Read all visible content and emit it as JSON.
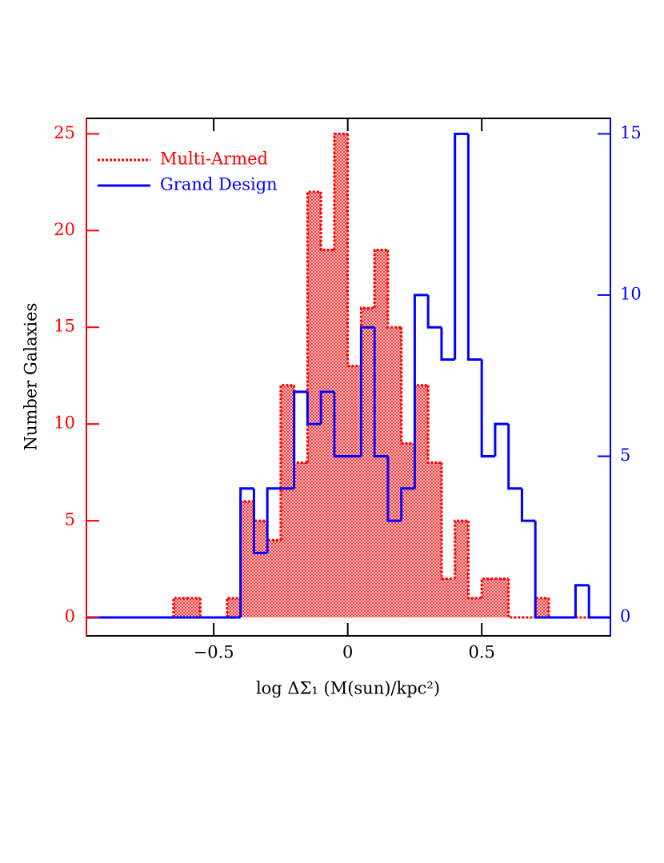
{
  "chart_data": {
    "type": "histogram",
    "xlabel": "log ΔΣ₁ (M(sun)/kpc²)",
    "ylabel": "Number Galaxies",
    "bins": [
      -1,
      -0.95,
      -0.9,
      -0.85,
      -0.8,
      -0.75,
      -0.7,
      -0.65,
      -0.6,
      -0.55,
      -0.5,
      -0.45,
      -0.4,
      -0.35,
      -0.3,
      -0.25,
      -0.2,
      -0.15,
      -0.1,
      -0.05,
      0,
      0.05,
      0.1,
      0.15,
      0.2,
      0.25,
      0.3,
      0.35,
      0.4,
      0.45,
      0.5,
      0.55,
      0.6,
      0.65,
      0.7,
      0.75,
      0.8,
      0.85,
      0.9,
      0.95,
      1
    ],
    "series": [
      {
        "name": "Multi-Armed",
        "color": "#ff0000",
        "values": [
          0,
          0,
          0,
          0,
          0,
          0,
          0,
          1,
          1,
          0,
          0,
          1,
          6,
          5,
          4,
          12,
          8,
          22,
          19,
          25,
          13,
          16,
          19,
          15,
          9,
          12,
          8,
          2,
          5,
          1,
          2,
          2,
          0,
          0,
          1,
          0,
          0,
          0,
          0,
          0
        ]
      },
      {
        "name": "Grand Design",
        "color": "#0000ff",
        "axis": "y2",
        "values": [
          0,
          0,
          0,
          0,
          0,
          0,
          0,
          0,
          0,
          0,
          0,
          0,
          4,
          2,
          4,
          4,
          7,
          6,
          7,
          5,
          5,
          9,
          5,
          3,
          4,
          10,
          9,
          8,
          15,
          8,
          5,
          6,
          4,
          3,
          0,
          0,
          0,
          1,
          0,
          0
        ]
      }
    ],
    "xlim": [
      -0.975,
      0.98
    ],
    "ylim": [
      -0.95,
      25.8
    ],
    "y2lim": [
      -0.57,
      15.48
    ],
    "xticks": [
      {
        "value": -0.5,
        "label": "−0.5"
      },
      0,
      0.5
    ],
    "yticks": [
      0,
      5,
      10,
      15,
      20,
      25
    ],
    "y2ticks": [
      0,
      5,
      10,
      15
    ]
  }
}
